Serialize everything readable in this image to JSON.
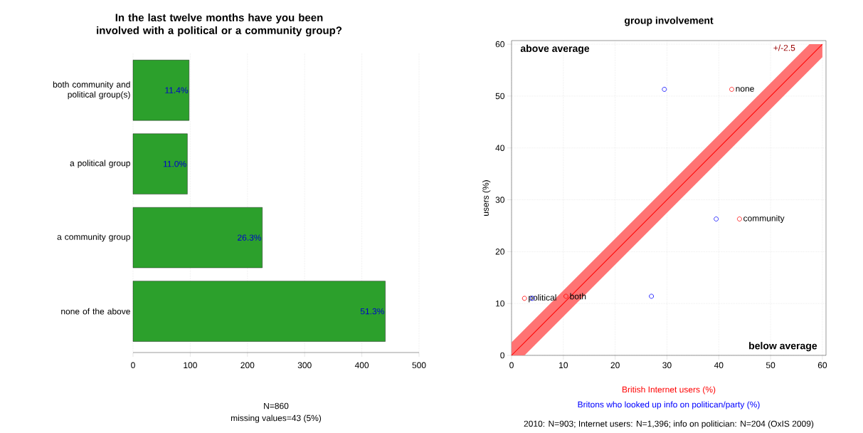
{
  "chart_data": [
    {
      "type": "bar",
      "orientation": "horizontal",
      "title": "In the last twelve months have you been involved with a political or a community group?",
      "xlabel": "N=860",
      "categories": [
        "both community and political group(s)",
        "a political group",
        "a community group",
        "none of the above"
      ],
      "values": [
        98,
        95,
        226,
        441
      ],
      "color": "#2ca02c",
      "xlim": [
        0,
        500
      ],
      "xticks": [
        0,
        100,
        200,
        300,
        400,
        500
      ],
      "grid": "x",
      "annotations": [
        "missing values=43 (5%)",
        {
          "text": "11.4%",
          "x": 98,
          "y": "both community and political group(s)"
        },
        {
          "text": "11.0%",
          "x": 95,
          "y": "a political group"
        },
        {
          "text": "26.3%",
          "x": 226,
          "y": "a community group"
        },
        {
          "text": "51.3%",
          "x": 441,
          "y": "none of the above"
        }
      ]
    },
    {
      "type": "scatter",
      "title": "group involvement",
      "ylabel": "users (%)",
      "xlim": [
        0,
        60.7
      ],
      "ylim": [
        0,
        60.7
      ],
      "xticks": [
        0,
        10,
        20,
        30,
        40,
        50,
        60
      ],
      "yticks": [
        0,
        10,
        20,
        30,
        40,
        50,
        60
      ],
      "grid": true,
      "series": [
        {
          "name": "British Internet users (%)",
          "marker": "circle",
          "color": "#ff0000",
          "x": [
            42.5,
            44.0,
            2.5,
            10.5
          ],
          "values": [
            51.3,
            26.3,
            11.0,
            11.4
          ]
        },
        {
          "name": "Britons who looked up info on politican/party (%)",
          "marker": "circle",
          "color": "#0000ff",
          "x": [
            29.5,
            39.5,
            4.0,
            27.0
          ],
          "values": [
            51.3,
            26.3,
            11.0,
            11.4
          ]
        },
        {
          "type": "line",
          "color": "#ff0000",
          "x": [
            0,
            2.5,
            57.5,
            60
          ],
          "values": [
            0,
            2.5,
            57.5,
            60
          ],
          "lower": [
            0,
            0,
            55,
            57.5
          ],
          "upper": [
            2.5,
            5,
            60,
            60
          ]
        }
      ],
      "annotations": [
        "above average",
        "below average",
        "+/-2.5",
        "2010: N=903; Internet users: N=1,396; info on politician: N=204 (OxIS 2009)",
        {
          "text": "none",
          "x": 42.5,
          "y": 51.3
        },
        {
          "text": "community",
          "x": 44.0,
          "y": 26.3
        },
        {
          "text": "political",
          "x": 2.5,
          "y": 11.0
        },
        {
          "text": "both",
          "x": 10.5,
          "y": 11.4
        }
      ]
    }
  ]
}
